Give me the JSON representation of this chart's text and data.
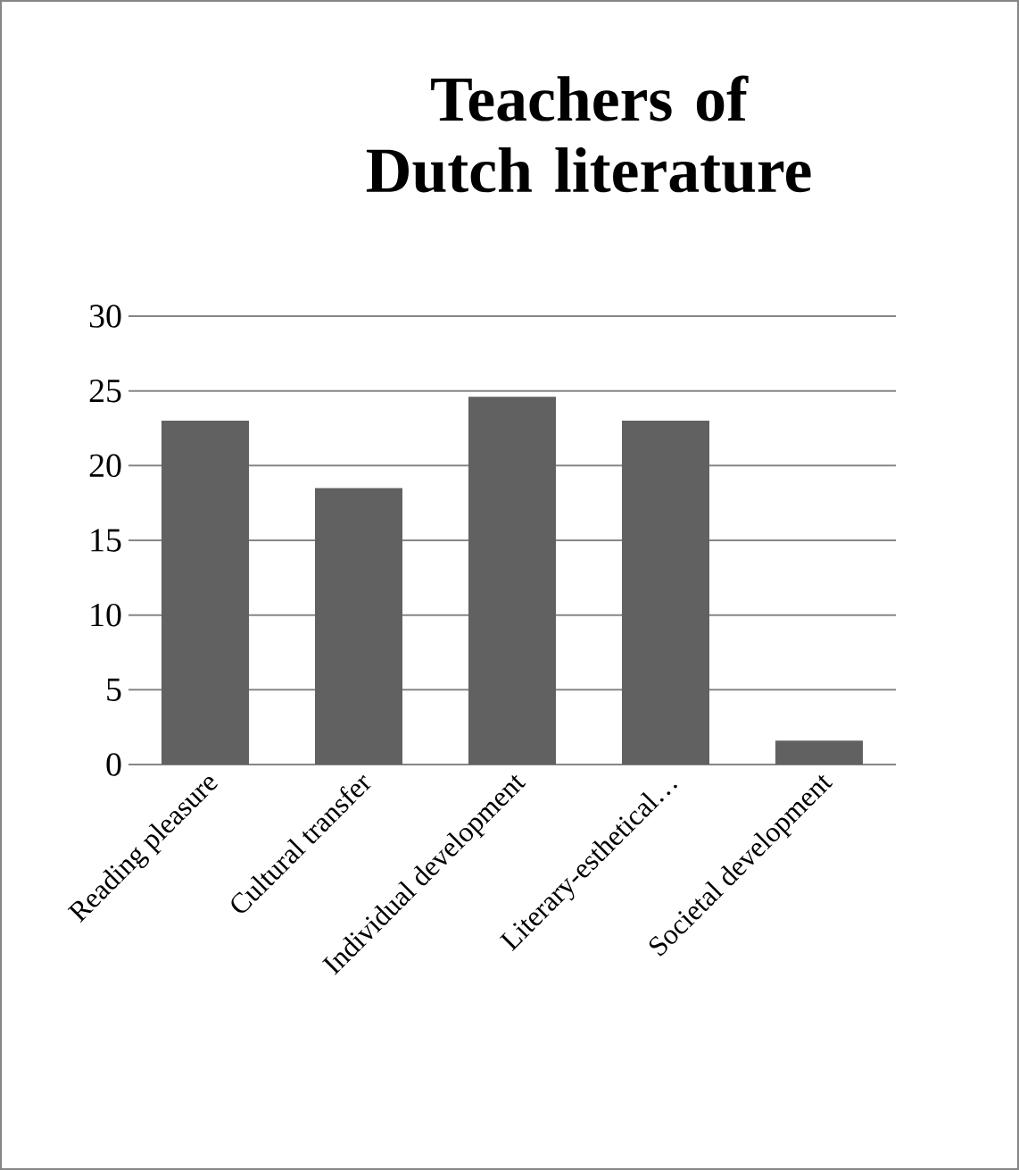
{
  "chart_data": {
    "type": "bar",
    "title": "Teachers of Dutch literature",
    "categories": [
      "Reading pleasure",
      "Cultural transfer",
      "Individual development",
      "Literary-esthetical…",
      "Societal development"
    ],
    "values": [
      23,
      18.5,
      24.6,
      23,
      1.6
    ],
    "color": "#616161",
    "ylim": [
      0,
      30
    ],
    "yticks": [
      0,
      5,
      10,
      15,
      20,
      25,
      30
    ],
    "grid": "y"
  }
}
